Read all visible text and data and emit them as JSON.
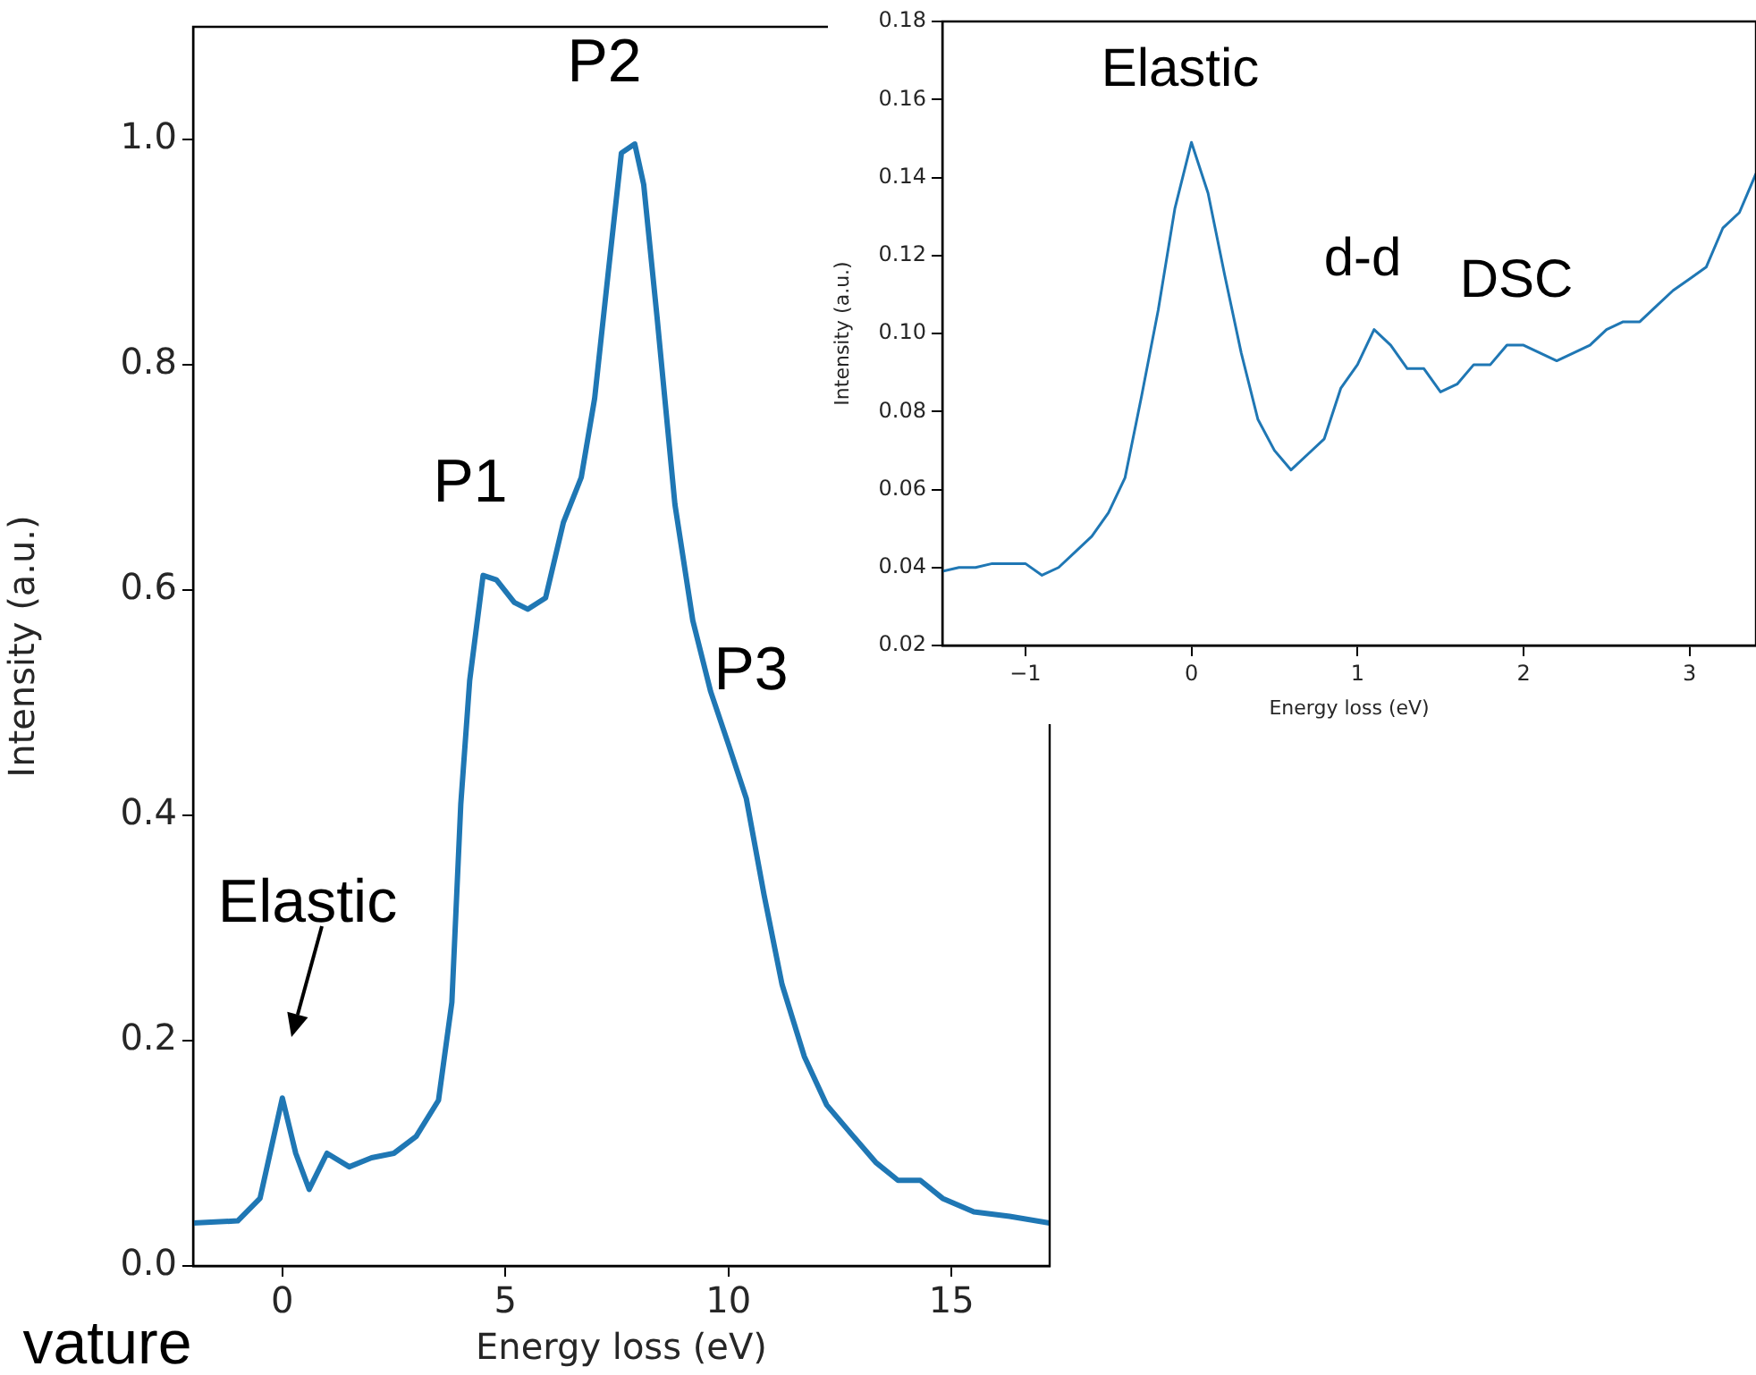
{
  "chart_data": [
    {
      "type": "line",
      "xlabel": "Energy loss (eV)",
      "ylabel": "Intensity (a.u.)",
      "color": "#1f77b4",
      "xlim": [
        -2,
        17.2
      ],
      "xticks": [
        0,
        5,
        10,
        15
      ],
      "ylim": [
        0,
        1.1
      ],
      "yticks": [
        {
          "value": 0,
          "label": "0.0"
        },
        0.2,
        0.4,
        0.6,
        0.8,
        {
          "value": 1,
          "label": "1.0"
        }
      ],
      "x": [
        -2,
        -1,
        -0.5,
        0,
        0.3,
        0.6,
        1.0,
        1.5,
        2.0,
        2.5,
        3.0,
        3.5,
        3.8,
        4.0,
        4.2,
        4.5,
        4.8,
        5.2,
        5.5,
        5.9,
        6.3,
        6.7,
        7.0,
        7.3,
        7.6,
        7.9,
        8.1,
        8.4,
        8.8,
        9.2,
        9.6,
        10.0,
        10.4,
        10.8,
        11.2,
        11.7,
        12.2,
        12.8,
        13.3,
        13.8,
        14.3,
        14.8,
        15.5,
        16.3,
        17.2
      ],
      "values": [
        0.038,
        0.04,
        0.06,
        0.149,
        0.1,
        0.068,
        0.1,
        0.088,
        0.096,
        0.1,
        0.115,
        0.147,
        0.234,
        0.41,
        0.52,
        0.613,
        0.609,
        0.589,
        0.583,
        0.593,
        0.66,
        0.7,
        0.77,
        0.88,
        0.988,
        0.996,
        0.96,
        0.842,
        0.676,
        0.573,
        0.51,
        0.463,
        0.415,
        0.329,
        0.25,
        0.186,
        0.143,
        0.115,
        0.092,
        0.076,
        0.076,
        0.06,
        0.048,
        0.044,
        0.038
      ],
      "annotations": [
        "P1",
        "P2",
        "P3",
        "Elastic",
        "vature"
      ]
    },
    {
      "type": "line",
      "xlabel": "Energy loss (eV)",
      "ylabel": "Intensity (a.u.)",
      "color": "#1f77b4",
      "xlim": [
        -1.5,
        3.4
      ],
      "xticks": [
        {
          "value": -1,
          "label": "−1"
        },
        0,
        1,
        2,
        3
      ],
      "ylim": [
        0.02,
        0.18
      ],
      "yticks": [
        {
          "value": 0.02,
          "label": "0.02"
        },
        {
          "value": 0.04,
          "label": "0.04"
        },
        {
          "value": 0.06,
          "label": "0.06"
        },
        {
          "value": 0.08,
          "label": "0.08"
        },
        {
          "value": 0.1,
          "label": "0.10"
        },
        {
          "value": 0.12,
          "label": "0.12"
        },
        {
          "value": 0.14,
          "label": "0.14"
        },
        {
          "value": 0.16,
          "label": "0.16"
        },
        {
          "value": 0.18,
          "label": "0.18"
        }
      ],
      "x": [
        -1.5,
        -1.4,
        -1.3,
        -1.2,
        -1.1,
        -1.0,
        -0.9,
        -0.8,
        -0.7,
        -0.6,
        -0.5,
        -0.4,
        -0.3,
        -0.2,
        -0.1,
        0,
        0.1,
        0.2,
        0.3,
        0.4,
        0.5,
        0.6,
        0.7,
        0.8,
        0.9,
        1.0,
        1.1,
        1.2,
        1.3,
        1.4,
        1.5,
        1.6,
        1.7,
        1.8,
        1.9,
        2.0,
        2.1,
        2.2,
        2.3,
        2.4,
        2.5,
        2.6,
        2.7,
        2.8,
        2.9,
        3.0,
        3.1,
        3.2,
        3.3,
        3.4
      ],
      "values": [
        0.039,
        0.04,
        0.04,
        0.041,
        0.041,
        0.041,
        0.038,
        0.04,
        0.044,
        0.048,
        0.054,
        0.063,
        0.084,
        0.106,
        0.132,
        0.149,
        0.136,
        0.115,
        0.095,
        0.078,
        0.07,
        0.065,
        0.069,
        0.073,
        0.086,
        0.092,
        0.101,
        0.097,
        0.091,
        0.091,
        0.085,
        0.087,
        0.092,
        0.092,
        0.097,
        0.097,
        0.095,
        0.093,
        0.095,
        0.097,
        0.101,
        0.103,
        0.103,
        0.107,
        0.111,
        0.114,
        0.117,
        0.127,
        0.131,
        0.141
      ],
      "annotations": [
        "Elastic",
        "d-d",
        "DSC"
      ]
    }
  ]
}
